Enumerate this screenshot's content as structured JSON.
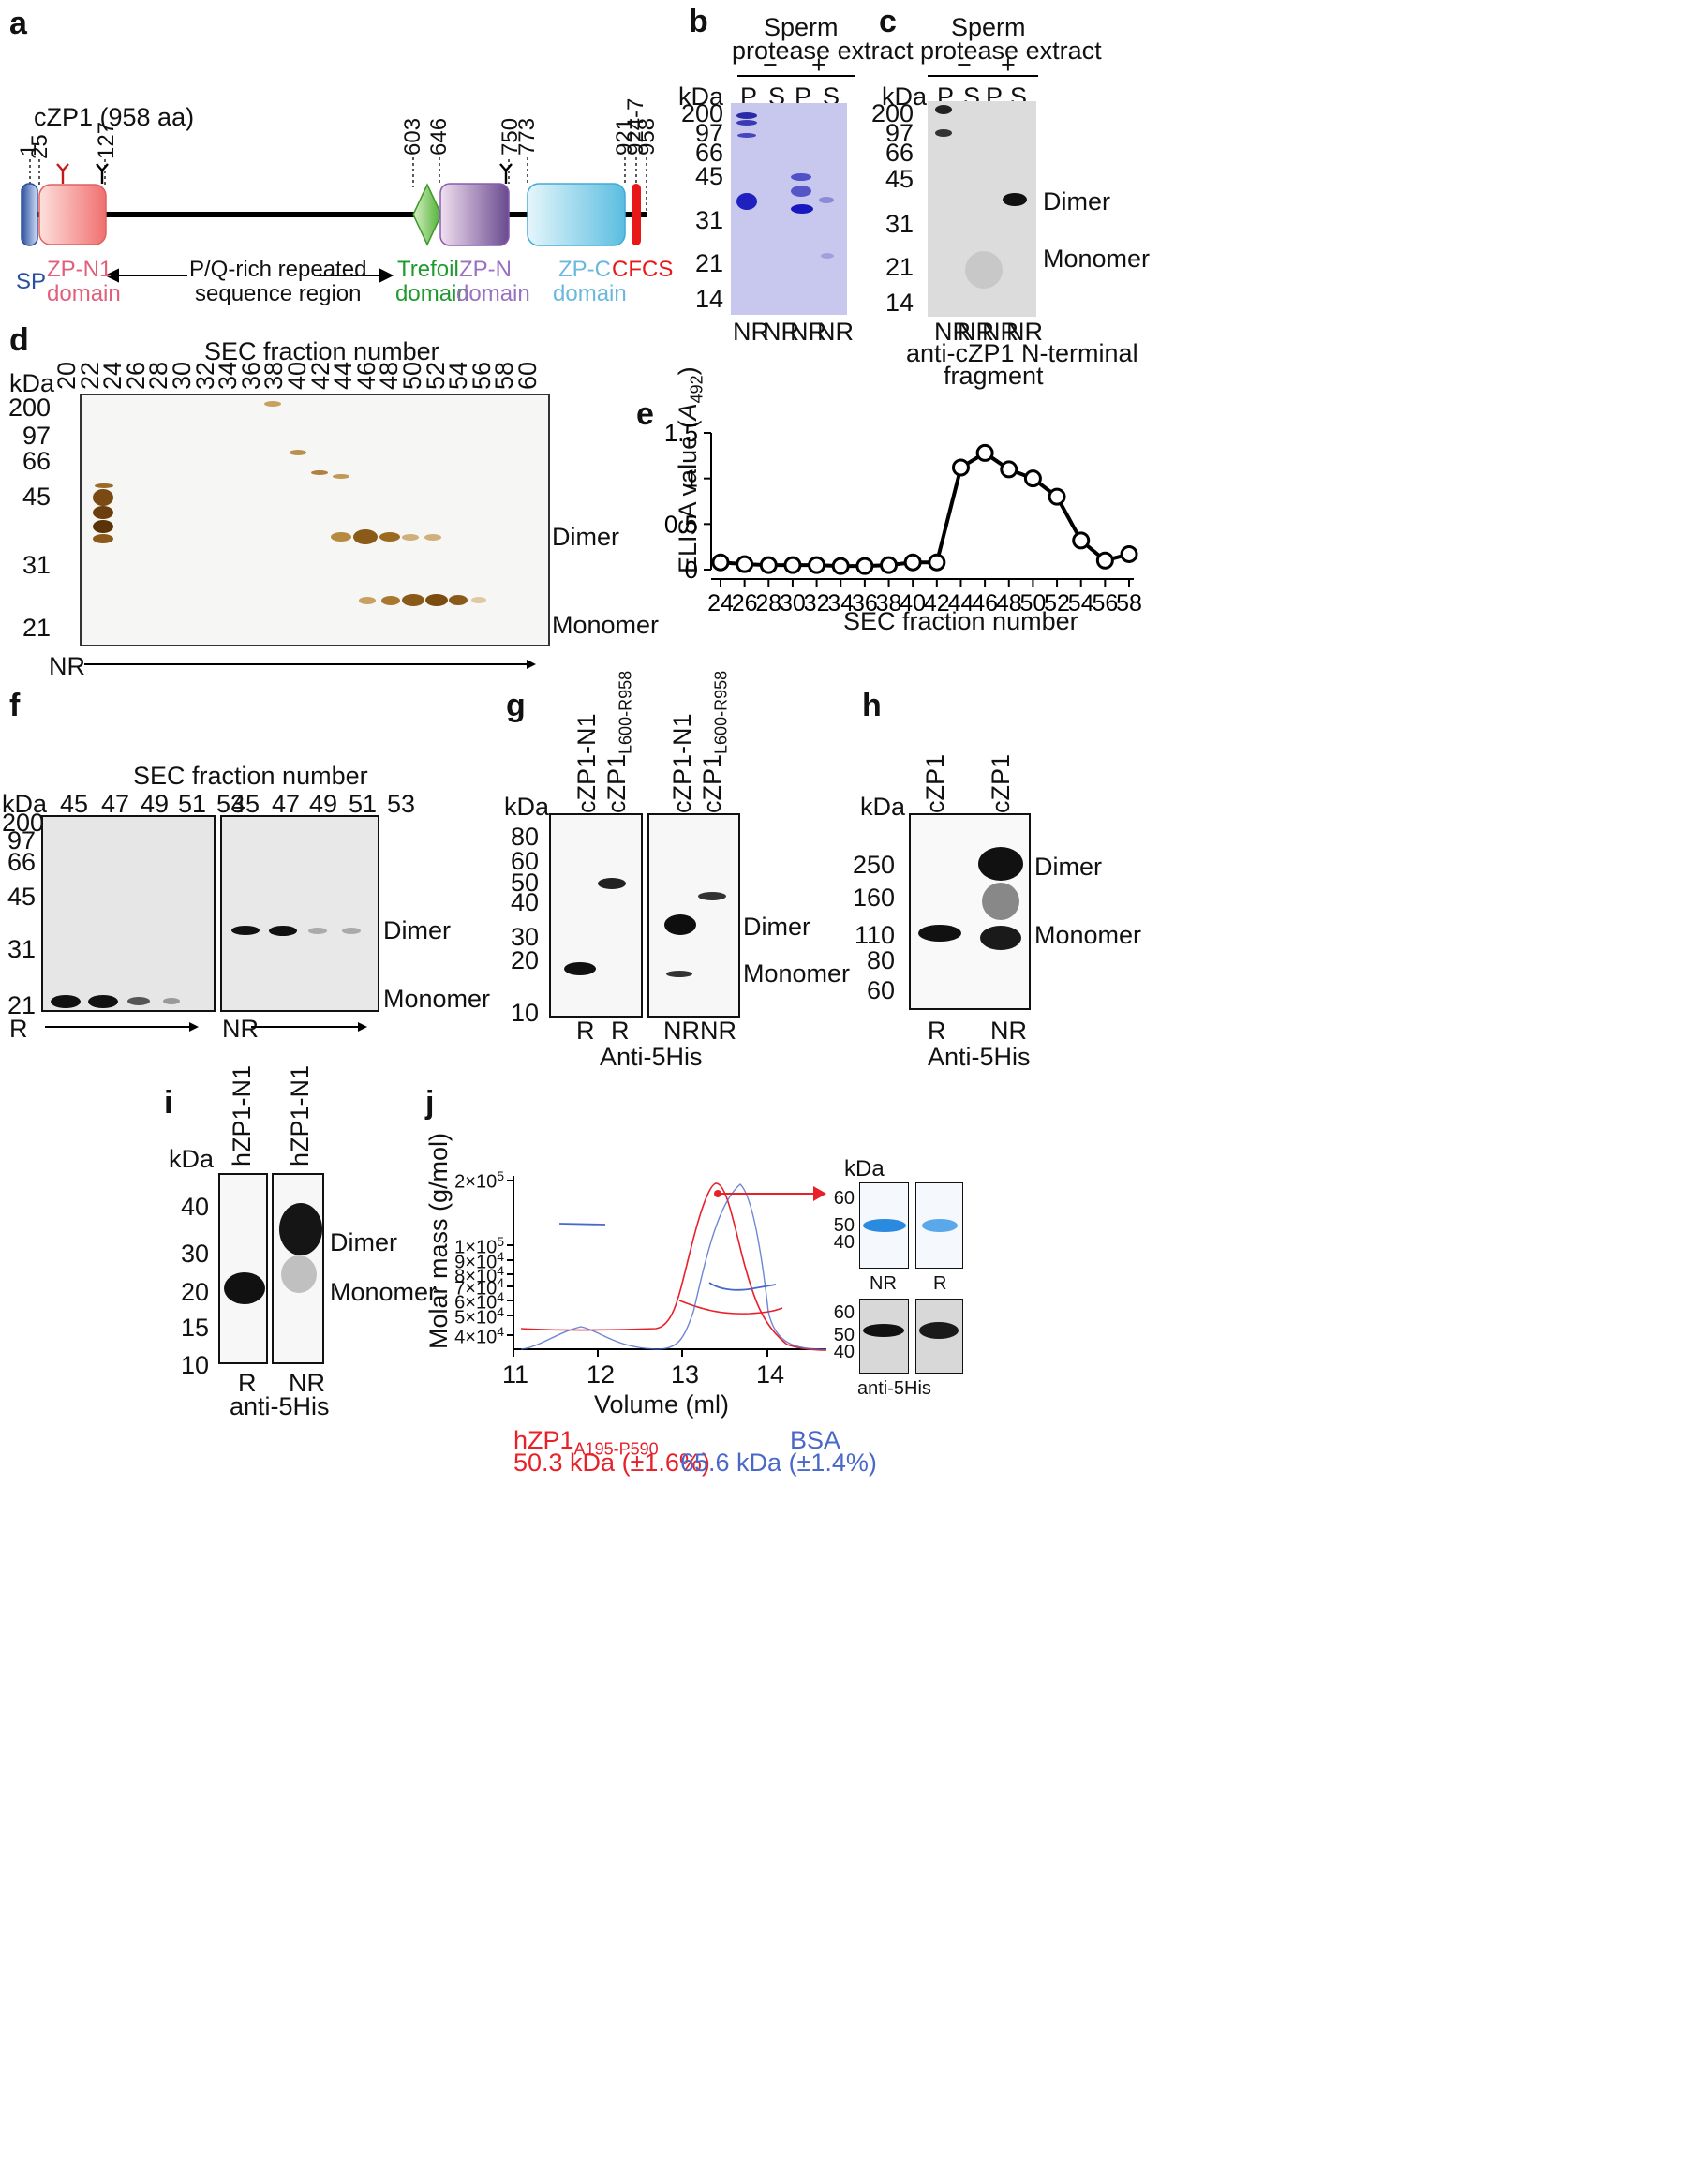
{
  "panels": {
    "a": {
      "letter": "a",
      "protein": "cZP1 (958 aa)",
      "positions": [
        "1",
        "25",
        "127",
        "603",
        "646",
        "750",
        "773",
        "921",
        "924-7",
        "958"
      ],
      "domains": {
        "sp": "SP",
        "zpn1_1": "ZP-N1",
        "zpn1_2": "domain",
        "pq_1": "P/Q-rich repeated",
        "pq_2": "sequence region",
        "trefoil_1": "Trefoil",
        "trefoil_2": "domain",
        "zpn_1": "ZP-N",
        "zpn_2": "domain",
        "zpc_1": "ZP-C",
        "zpc_2": "domain",
        "cfcs": "CFCS"
      }
    },
    "b": {
      "letter": "b",
      "title_1": "Sperm",
      "title_2": "protease extract",
      "minus": "−",
      "plus": "+",
      "kda": "kDa",
      "lanes": [
        "P",
        "S",
        "P",
        "S"
      ],
      "conditions": [
        "NR",
        "NR",
        "NR",
        "NR"
      ],
      "markers": [
        "200",
        "97",
        "66",
        "45",
        "31",
        "21",
        "14"
      ]
    },
    "c": {
      "letter": "c",
      "title_1": "Sperm",
      "title_2": "protease extract",
      "minus": "−",
      "plus": "+",
      "kda": "kDa",
      "lanes": [
        "P",
        "S",
        "P",
        "S"
      ],
      "conditions": [
        "NR",
        "NR",
        "NR",
        "NR"
      ],
      "markers": [
        "200",
        "97",
        "66",
        "45",
        "31",
        "21",
        "14"
      ],
      "dimer": "Dimer",
      "monomer": "Monomer",
      "caption_1": "anti-cZP1 N-terminal",
      "caption_2": "fragment"
    },
    "d": {
      "letter": "d",
      "title": "SEC fraction number",
      "kda": "kDa",
      "fractions": [
        "20",
        "22",
        "24",
        "26",
        "28",
        "30",
        "32",
        "34",
        "36",
        "38",
        "40",
        "42",
        "44",
        "46",
        "48",
        "50",
        "52",
        "54",
        "56",
        "58",
        "60"
      ],
      "markers": [
        "200",
        "97",
        "66",
        "45",
        "31",
        "21"
      ],
      "dimer": "Dimer",
      "monomer": "Monomer",
      "nr": "NR"
    },
    "e": {
      "letter": "e",
      "ylabel": "ELISA value (A492)",
      "ylabel_main": "ELISA value (",
      "ylabel_a": "A",
      "ylabel_sub": "492",
      "ylabel_end": ")",
      "xlabel": "SEC fraction number"
    },
    "f": {
      "letter": "f",
      "title": "SEC fraction number",
      "kda": "kDa",
      "fractions": [
        "45",
        "47",
        "49",
        "51",
        "53"
      ],
      "markers": [
        "200",
        "97",
        "66",
        "45",
        "31",
        "21"
      ],
      "dimer": "Dimer",
      "monomer": "Monomer",
      "r": "R",
      "nr": "NR"
    },
    "g": {
      "letter": "g",
      "kda": "kDa",
      "lane1": "cZP1-N1",
      "lane2_main": "cZP1",
      "lane2_sub": "L600-R958",
      "markers": [
        "80",
        "60",
        "50",
        "40",
        "30",
        "20",
        "10"
      ],
      "conditions": [
        "R",
        "R",
        "NR",
        "NR"
      ],
      "dimer": "Dimer",
      "monomer": "Monomer",
      "caption": "Anti-5His"
    },
    "h": {
      "letter": "h",
      "kda": "kDa",
      "lanes": [
        "cZP1",
        "cZP1"
      ],
      "markers": [
        "250",
        "160",
        "110",
        "80",
        "60"
      ],
      "conditions": [
        "R",
        "NR"
      ],
      "dimer": "Dimer",
      "monomer": "Monomer",
      "caption": "Anti-5His"
    },
    "i": {
      "letter": "i",
      "kda": "kDa",
      "lanes": [
        "hZP1-N1",
        "hZP1-N1"
      ],
      "markers": [
        "40",
        "30",
        "20",
        "15",
        "10"
      ],
      "conditions": [
        "R",
        "NR"
      ],
      "dimer": "Dimer",
      "monomer": "Monomer",
      "caption": "anti-5His"
    },
    "j": {
      "letter": "j",
      "ylabel": "Molar mass (g/mol)",
      "xlabel": "Volume (ml)",
      "yticks": [
        {
          "base": "2×10",
          "exp": "5"
        },
        {
          "base": "1×10",
          "exp": "5"
        },
        {
          "base": "9×10",
          "exp": "4"
        },
        {
          "base": "8×10",
          "exp": "4"
        },
        {
          "base": "7×10",
          "exp": "4"
        },
        {
          "base": "6×10",
          "exp": "4"
        },
        {
          "base": "5×10",
          "exp": "4"
        },
        {
          "base": "4×10",
          "exp": "4"
        }
      ],
      "xticks": [
        "11",
        "12",
        "13",
        "14"
      ],
      "legend_red_main": "hZP1",
      "legend_red_sub": "A195-P590",
      "legend_red_mass": "50.3 kDa (±1.6%)",
      "legend_blue": "BSA",
      "legend_blue_mass": "65.6 kDa (±1.4%)",
      "inset_kda": "kDa",
      "inset_markers_top": [
        "60",
        "50",
        "40"
      ],
      "inset_markers_bottom": [
        "60",
        "50",
        "40"
      ],
      "inset_lanes": [
        "NR",
        "R"
      ],
      "inset_caption": "anti-5His",
      "colors": {
        "red": "#e8202a",
        "blue": "#4a68c8"
      }
    }
  },
  "chart_data": [
    {
      "type": "line",
      "title": "",
      "xlabel": "SEC fraction number",
      "ylabel": "ELISA value (A492)",
      "x": [
        24,
        26,
        28,
        30,
        32,
        34,
        36,
        38,
        40,
        42,
        44,
        46,
        48,
        50,
        52,
        54,
        56,
        58
      ],
      "y": [
        0.08,
        0.06,
        0.05,
        0.05,
        0.05,
        0.04,
        0.04,
        0.05,
        0.08,
        0.08,
        1.12,
        1.28,
        1.1,
        1.0,
        0.8,
        0.32,
        0.1,
        0.17
      ],
      "xlim": [
        24,
        58
      ],
      "ylim": [
        0,
        1.5
      ],
      "yticks": [
        "0",
        "0.5",
        "1",
        "1.5"
      ],
      "xticks": [
        "24",
        "26",
        "28",
        "30",
        "32",
        "34",
        "36",
        "38",
        "40",
        "42",
        "44",
        "46",
        "48",
        "50",
        "52",
        "54",
        "56",
        "58"
      ]
    },
    {
      "type": "line",
      "title": "",
      "xlabel": "Volume (ml)",
      "ylabel": "Molar mass (g/mol)",
      "xlim": [
        11,
        14.7
      ],
      "series": [
        {
          "name": "hZP1 A195-P590",
          "mass_kDa": 50.3,
          "peak_ml": 13.42
        },
        {
          "name": "BSA",
          "mass_kDa": 65.6,
          "peak_ml": 13.72
        }
      ]
    }
  ]
}
